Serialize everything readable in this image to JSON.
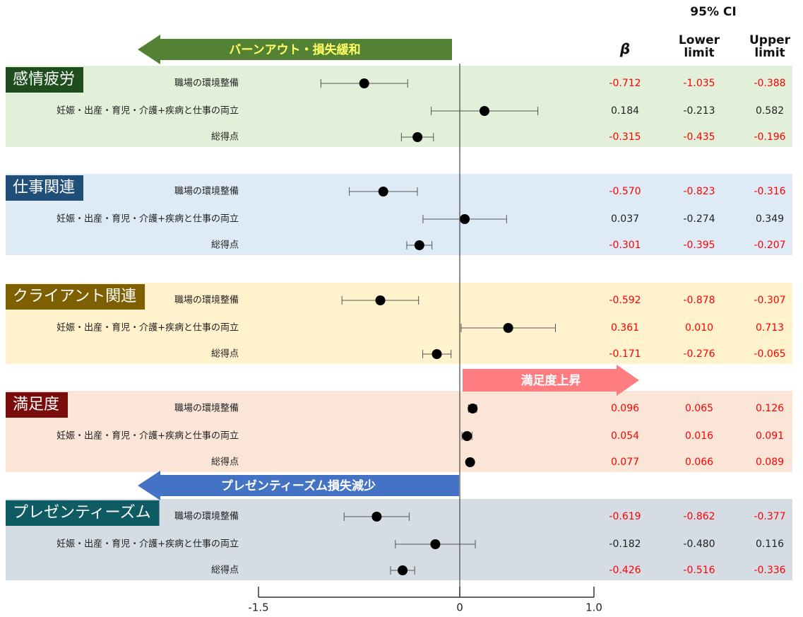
{
  "chart_data": {
    "type": "forest",
    "ci_header": "95% CI",
    "columns": [
      "β",
      "Lower limit",
      "Upper limit"
    ],
    "xlim": [
      -1.5,
      1.0
    ],
    "xticks": [
      -1.5,
      0,
      {
        "value": 1,
        "label": "1.0"
      }
    ],
    "annotations": [
      {
        "text": "バーンアウト・損失緩和",
        "color": "#548235",
        "direction": "left"
      },
      {
        "text": "満足度上昇",
        "color": "#ff7c80",
        "direction": "right"
      },
      {
        "text": "プレゼンティーズム損失減少",
        "color": "#4472c4",
        "direction": "left"
      }
    ],
    "groups": [
      {
        "name": "感情疲労",
        "color": "#1e4d1e",
        "band": "#e2efd9",
        "rows": [
          {
            "label": "職場の環境整備",
            "values": [
              -0.712,
              -1.035,
              -0.388
            ],
            "color": "#ff0000"
          },
          {
            "label": "妊娠・出産・育児・介護+疾病と仕事の両立",
            "values": [
              0.184,
              -0.213,
              0.582
            ],
            "color": "#222222"
          },
          {
            "label": "総得点",
            "values": [
              -0.315,
              -0.435,
              -0.196
            ],
            "color": "#ff0000"
          }
        ]
      },
      {
        "name": "仕事関連",
        "color": "#1f4e79",
        "band": "#deebf7",
        "rows": [
          {
            "label": "職場の環境整備",
            "values": [
              -0.57,
              -0.823,
              -0.316
            ],
            "value_labels": [
              "-0.570",
              "-0.823",
              "-0.316"
            ],
            "color": "#ff0000"
          },
          {
            "label": "妊娠・出産・育児・介護+疾病と仕事の両立",
            "values": [
              0.037,
              -0.274,
              0.349
            ],
            "color": "#222222"
          },
          {
            "label": "総得点",
            "values": [
              -0.301,
              -0.395,
              -0.207
            ],
            "color": "#ff0000"
          }
        ]
      },
      {
        "name": "クライアント関連",
        "color": "#7f6000",
        "band": "#fff2cc",
        "rows": [
          {
            "label": "職場の環境整備",
            "values": [
              -0.592,
              -0.878,
              -0.307
            ],
            "color": "#ff0000"
          },
          {
            "label": "妊娠・出産・育児・介護+疾病と仕事の両立",
            "values": [
              0.361,
              0.01,
              0.713
            ],
            "value_labels": [
              "0.361",
              "0.010",
              "0.713"
            ],
            "color": "#ff0000"
          },
          {
            "label": "総得点",
            "values": [
              -0.171,
              -0.276,
              -0.065
            ],
            "color": "#ff0000"
          }
        ]
      },
      {
        "name": "満足度",
        "color": "#7b0c0c",
        "band": "#fbe5d6",
        "rows": [
          {
            "label": "職場の環境整備",
            "values": [
              0.096,
              0.065,
              0.126
            ],
            "color": "#ff0000"
          },
          {
            "label": "妊娠・出産・育児・介護+疾病と仕事の両立",
            "values": [
              0.054,
              0.016,
              0.091
            ],
            "color": "#ff0000"
          },
          {
            "label": "総得点",
            "values": [
              0.077,
              0.066,
              0.089
            ],
            "color": "#ff0000"
          }
        ]
      },
      {
        "name": "プレゼンティーズム",
        "color": "#0e5b64",
        "band": "#d6dce4",
        "rows": [
          {
            "label": "職場の環境整備",
            "values": [
              -0.619,
              -0.862,
              -0.377
            ],
            "color": "#ff0000"
          },
          {
            "label": "妊娠・出産・育児・介護+疾病と仕事の両立",
            "values": [
              -0.182,
              -0.48,
              0.116
            ],
            "value_labels": [
              "-0.182",
              "-0.480",
              "0.116"
            ],
            "color": "#222222"
          },
          {
            "label": "総得点",
            "values": [
              -0.426,
              -0.516,
              -0.336
            ],
            "color": "#ff0000"
          }
        ]
      }
    ]
  }
}
